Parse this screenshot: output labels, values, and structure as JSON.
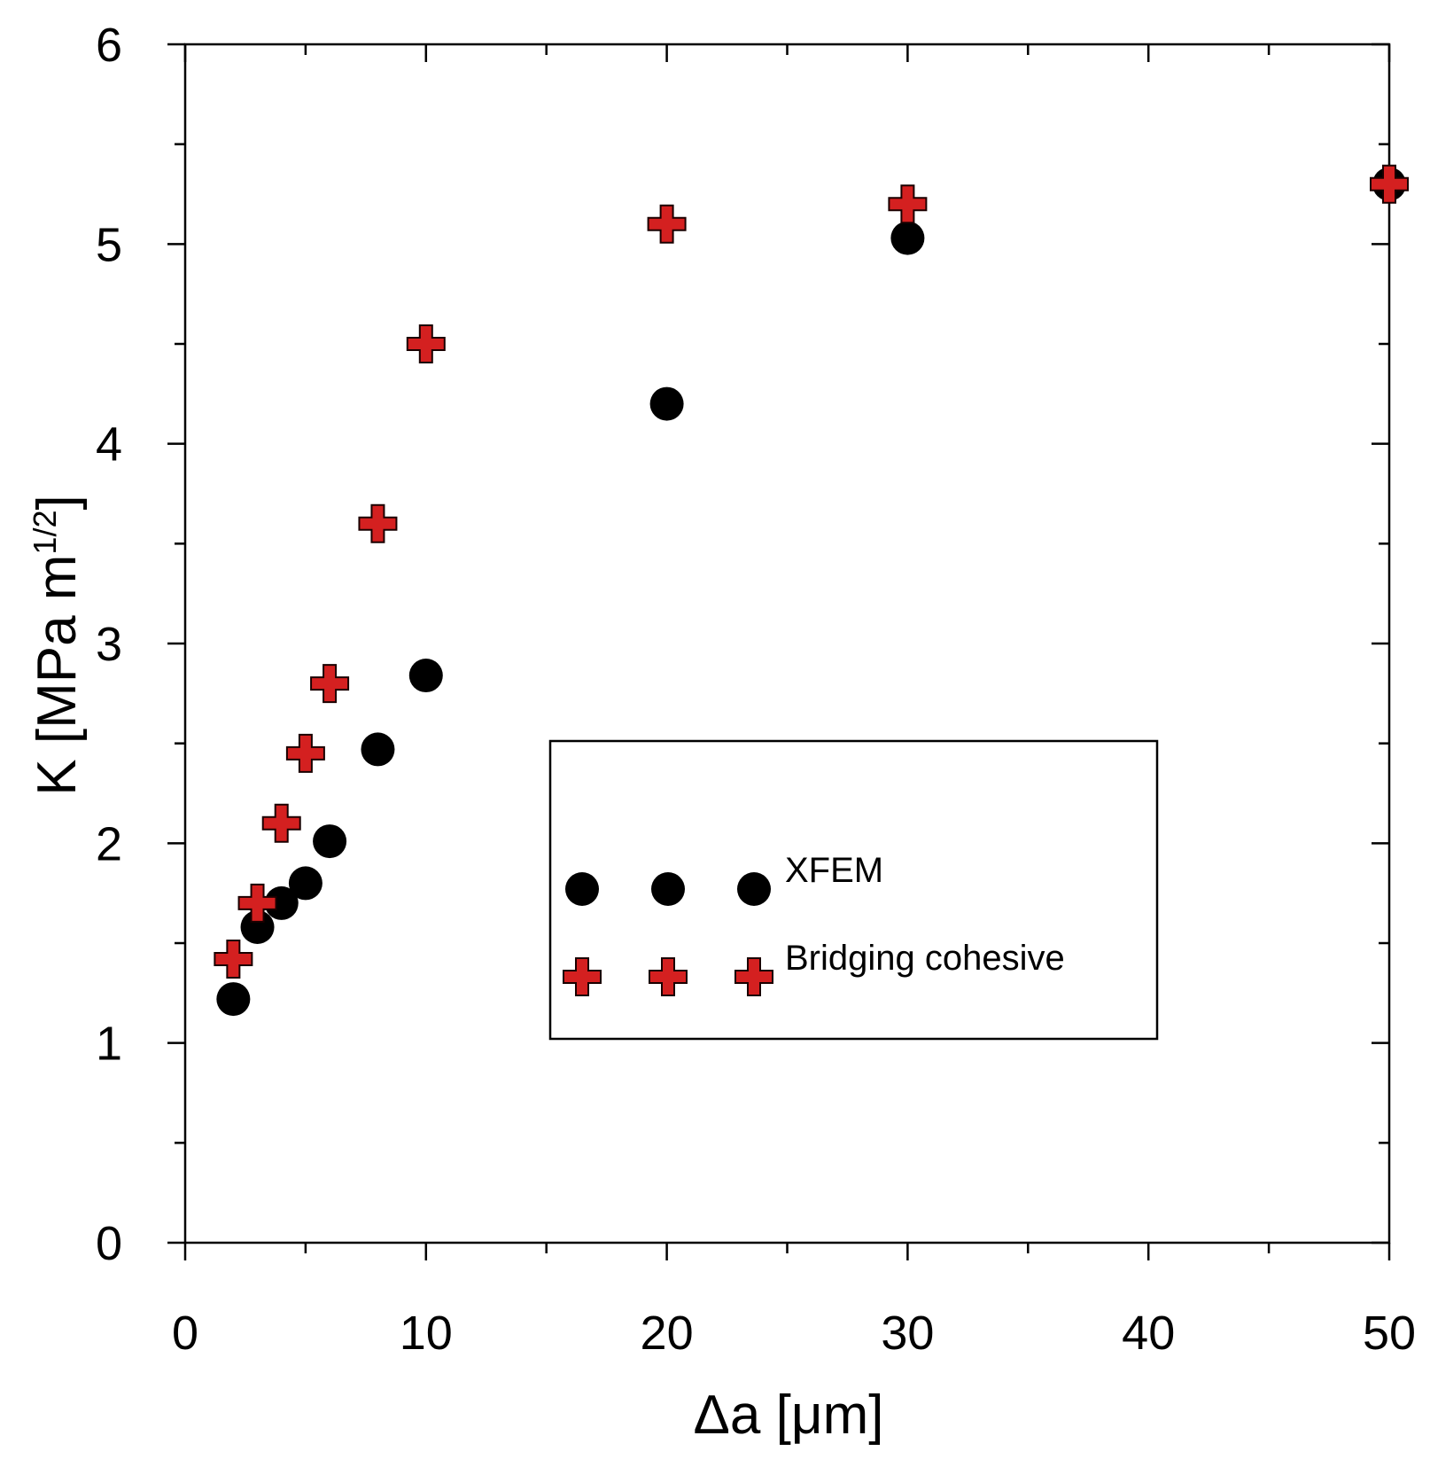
{
  "chart_data": {
    "type": "scatter",
    "title": "",
    "xlabel": "Δa [μm]",
    "ylabel_main": "K [MPa m",
    "ylabel_sup": "1/2",
    "ylabel_close": "]",
    "xlim": [
      0,
      50
    ],
    "ylim": [
      0,
      6
    ],
    "x_major_ticks": [
      0,
      10,
      20,
      30,
      40,
      50
    ],
    "x_tick_labels": [
      "0",
      "10",
      "20",
      "30",
      "40",
      "50"
    ],
    "x_minor_ticks": [
      5,
      15,
      25,
      35,
      45
    ],
    "y_major_ticks": [
      0,
      1,
      2,
      3,
      4,
      5,
      6
    ],
    "y_tick_labels": [
      "0",
      "1",
      "2",
      "3",
      "4",
      "5",
      "6"
    ],
    "y_minor_ticks": [
      0.5,
      1.5,
      2.5,
      3.5,
      4.5,
      5.5
    ],
    "grid": false,
    "legend_position": "center-right",
    "series": [
      {
        "name": "XFEM",
        "marker": "circle",
        "color": "#000000",
        "x": [
          2,
          3,
          4,
          5,
          6,
          8,
          10,
          20,
          30,
          50
        ],
        "y": [
          1.22,
          1.58,
          1.7,
          1.8,
          2.01,
          2.47,
          2.84,
          4.2,
          5.03,
          5.3
        ]
      },
      {
        "name": "Bridging cohesive",
        "marker": "cross",
        "color": "#d42020",
        "x": [
          2,
          3,
          4,
          5,
          6,
          8,
          10,
          20,
          30,
          50
        ],
        "y": [
          1.42,
          1.7,
          2.1,
          2.45,
          2.8,
          3.6,
          4.5,
          5.1,
          5.2,
          5.3
        ]
      }
    ]
  }
}
